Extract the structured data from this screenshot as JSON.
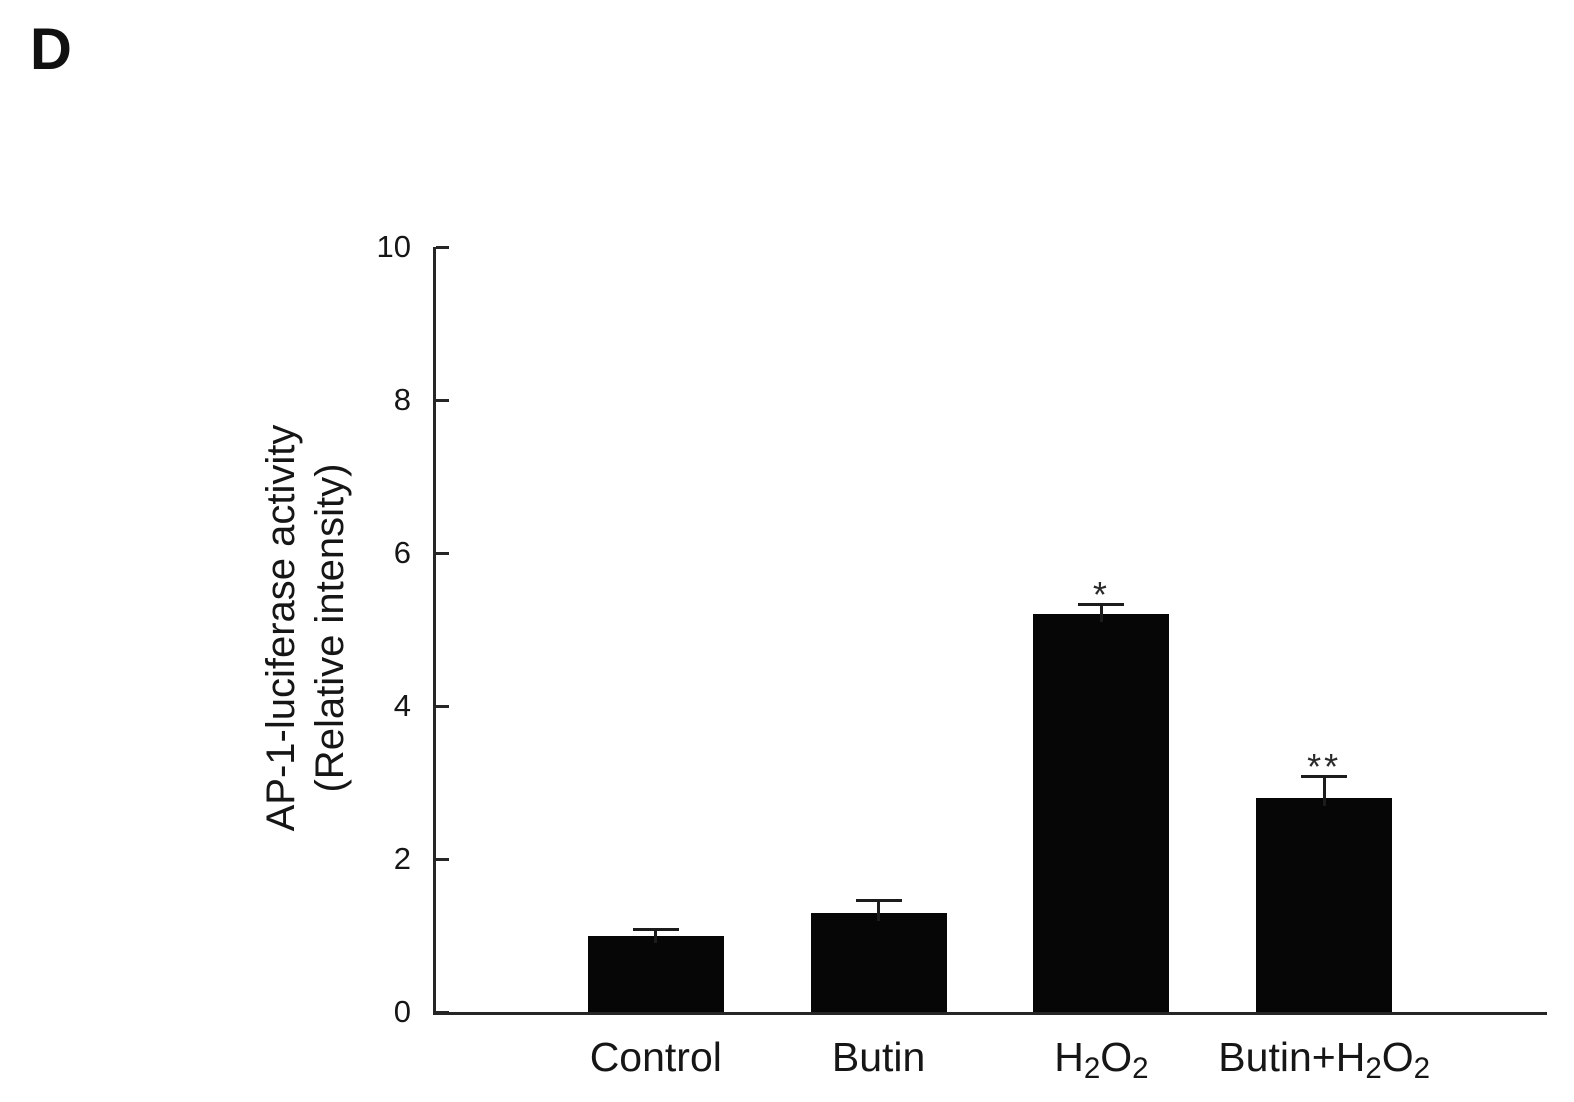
{
  "panel_label": "D",
  "chart_data": {
    "type": "bar",
    "title": "",
    "ylabel_lines": [
      "AP-1-luciferase activity",
      "(Relative intensity)"
    ],
    "ylim": [
      0,
      10
    ],
    "yticks": [
      0,
      2,
      4,
      6,
      8,
      10
    ],
    "categories": [
      {
        "parts": [
          {
            "text": "Control"
          }
        ]
      },
      {
        "parts": [
          {
            "text": "Butin"
          }
        ]
      },
      {
        "parts": [
          {
            "text": "H"
          },
          {
            "text": "2",
            "sub": true
          },
          {
            "text": "O"
          },
          {
            "text": "2",
            "sub": true
          }
        ]
      },
      {
        "parts": [
          {
            "text": "Butin+H"
          },
          {
            "text": "2",
            "sub": true
          },
          {
            "text": "O"
          },
          {
            "text": "2",
            "sub": true
          }
        ]
      }
    ],
    "values": [
      1.0,
      1.3,
      5.2,
      2.8
    ],
    "errors_upper": [
      0.1,
      0.18,
      0.15,
      0.3
    ],
    "annotations": [
      "",
      "",
      "*",
      "**"
    ],
    "bar_color": "#060606",
    "axis_color": "#262626",
    "background_color": "#ffffff",
    "grid": false,
    "legend": null
  }
}
